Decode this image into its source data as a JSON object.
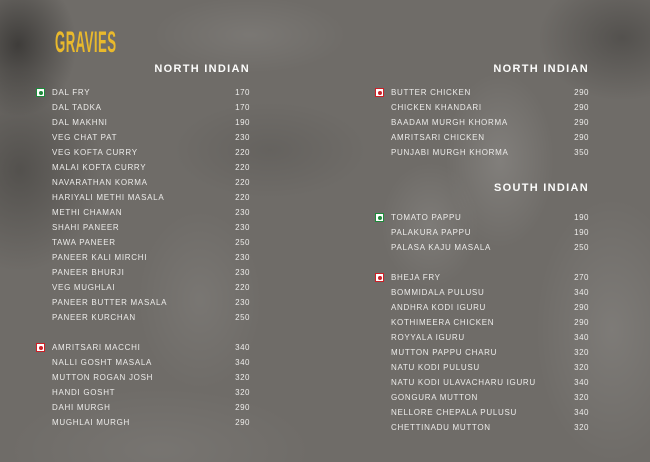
{
  "page": {
    "title": "GRAVIES",
    "accent_color": "#e9b92c",
    "background_color": "#6f6c68",
    "text_color": "#edecea",
    "veg_indicator_color": "#1d8a3b",
    "nonveg_indicator_color": "#cb2027",
    "icons": {
      "veg": "veg-indicator-icon",
      "nonveg": "nonveg-indicator-icon"
    }
  },
  "columns": [
    {
      "sections": [
        {
          "header": "NORTH INDIAN",
          "groups": [
            {
              "badge": "veg",
              "items": [
                {
                  "name": "DAL FRY",
                  "price": "170"
                },
                {
                  "name": "DAL TADKA",
                  "price": "170"
                },
                {
                  "name": "DAL MAKHNI",
                  "price": "190"
                },
                {
                  "name": "VEG CHAT PAT",
                  "price": "230"
                },
                {
                  "name": "VEG KOFTA CURRY",
                  "price": "220"
                },
                {
                  "name": "MALAI KOFTA CURRY",
                  "price": "220"
                },
                {
                  "name": "NAVARATHAN KORMA",
                  "price": "220"
                },
                {
                  "name": "HARIYALI METHI MASALA",
                  "price": "220"
                },
                {
                  "name": "METHI CHAMAN",
                  "price": "230"
                },
                {
                  "name": "SHAHI PANEER",
                  "price": "230"
                },
                {
                  "name": "TAWA PANEER",
                  "price": "250"
                },
                {
                  "name": "PANEER KALI MIRCHI",
                  "price": "230"
                },
                {
                  "name": "PANEER BHURJI",
                  "price": "230"
                },
                {
                  "name": "VEG MUGHLAI",
                  "price": "220"
                },
                {
                  "name": "PANEER BUTTER MASALA",
                  "price": "230"
                },
                {
                  "name": "PANEER KURCHAN",
                  "price": "250"
                }
              ]
            },
            {
              "badge": "nonveg",
              "items": [
                {
                  "name": "AMRITSARI MACCHI",
                  "price": "340"
                },
                {
                  "name": "NALLI GOSHT MASALA",
                  "price": "340"
                },
                {
                  "name": "MUTTON ROGAN JOSH",
                  "price": "320"
                },
                {
                  "name": "HANDI GOSHT",
                  "price": "320"
                },
                {
                  "name": "DAHI MURGH",
                  "price": "290"
                },
                {
                  "name": "MUGHLAI MURGH",
                  "price": "290"
                }
              ]
            }
          ]
        }
      ]
    },
    {
      "sections": [
        {
          "header": "NORTH INDIAN",
          "groups": [
            {
              "badge": "nonveg",
              "items": [
                {
                  "name": "BUTTER CHICKEN",
                  "price": "290"
                },
                {
                  "name": "CHICKEN KHANDARI",
                  "price": "290"
                },
                {
                  "name": "BAADAM MURGH KHORMA",
                  "price": "290"
                },
                {
                  "name": "AMRITSARI CHICKEN",
                  "price": "290"
                },
                {
                  "name": "PUNJABI MURGH KHORMA",
                  "price": "350"
                }
              ]
            }
          ]
        },
        {
          "header": "SOUTH INDIAN",
          "groups": [
            {
              "badge": "veg",
              "items": [
                {
                  "name": "TOMATO PAPPU",
                  "price": "190"
                },
                {
                  "name": "PALAKURA PAPPU",
                  "price": "190"
                },
                {
                  "name": "PALASA KAJU MASALA",
                  "price": "250"
                }
              ]
            },
            {
              "badge": "nonveg",
              "items": [
                {
                  "name": "BHEJA FRY",
                  "price": "270"
                },
                {
                  "name": "BOMMIDALA PULUSU",
                  "price": "340"
                },
                {
                  "name": "ANDHRA KODI IGURU",
                  "price": "290"
                },
                {
                  "name": "KOTHIMEERA CHICKEN",
                  "price": "290"
                },
                {
                  "name": "ROYYALA IGURU",
                  "price": "340"
                },
                {
                  "name": "MUTTON PAPPU CHARU",
                  "price": "320"
                },
                {
                  "name": "NATU KODI PULUSU",
                  "price": "320"
                },
                {
                  "name": "NATU KODI ULAVACHARU IGURU",
                  "price": "340"
                },
                {
                  "name": "GONGURA MUTTON",
                  "price": "320"
                },
                {
                  "name": "NELLORE CHEPALA PULUSU",
                  "price": "340"
                },
                {
                  "name": "CHETTINADU MUTTON",
                  "price": "320"
                }
              ]
            }
          ]
        }
      ]
    }
  ]
}
